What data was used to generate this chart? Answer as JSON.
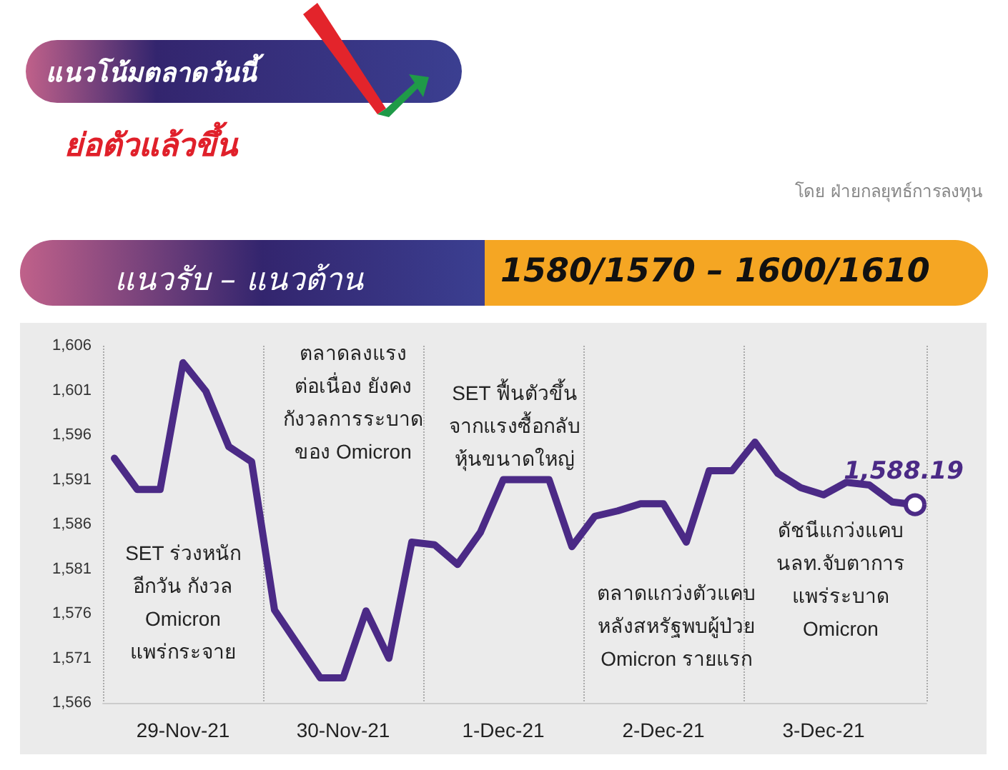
{
  "chart_data": {
    "type": "line",
    "title": "แนวโน้มตลาดวันนี้",
    "subtitle": "ย่อตัวแล้วขึ้น",
    "annotations": [
      "โดย ฝ่ายกลยุทธ์การลงทุน",
      "แนวรับ – แนวต้าน",
      "1580/1570 – 1600/1610",
      "SET ร่วงหนัก\nอีกวัน กังวล\nOmicron\nแพร่กระจาย",
      "ตลาดลงแรง\nต่อเนื่อง ยังคง\nกังวลการระบาด\nของ Omicron",
      "SET ฟื้นตัวขึ้น\nจากแรงซื้อกลับ\nหุ้นขนาดใหญ่",
      "ตลาดแกว่งตัวแคบ\nหลังสหรัฐพบผู้ป่วย\nOmicron รายแรก",
      "ดัชนีแกว่งแคบ\nนลท.จับตาการ\nแพร่ระบาด\nOmicron",
      {
        "text": "1,588.19",
        "y": 1588.19
      }
    ],
    "categories": [
      null,
      null,
      null,
      "29-Nov-21",
      null,
      null,
      null,
      null,
      null,
      null,
      "30-Nov-21",
      null,
      null,
      null,
      null,
      null,
      null,
      "1-Dec-21",
      null,
      null,
      null,
      null,
      null,
      null,
      "2-Dec-21",
      null,
      null,
      null,
      null,
      null,
      null,
      "3-Dec-21",
      null,
      null,
      null,
      null
    ],
    "ylim": [
      1566,
      1606
    ],
    "yticks": [
      {
        "value": 1566,
        "label": "1,566"
      },
      {
        "value": 1571,
        "label": "1,571"
      },
      {
        "value": 1576,
        "label": "1,576"
      },
      {
        "value": 1581,
        "label": "1,581"
      },
      {
        "value": 1586,
        "label": "1,586"
      },
      {
        "value": 1591,
        "label": "1,591"
      },
      {
        "value": 1596,
        "label": "1,596"
      },
      {
        "value": 1601,
        "label": "1,601"
      },
      {
        "value": 1606,
        "label": "1,606"
      }
    ],
    "series": [
      {
        "color": "#4b2a86",
        "values": [
          1593.4,
          1589.9,
          1589.9,
          1604.1,
          1600.9,
          1594.7,
          1593.0,
          1576.4,
          1572.6,
          1568.8,
          1568.8,
          1576.3,
          1571.0,
          1584.0,
          1583.7,
          1581.5,
          1585.1,
          1591.0,
          1591.0,
          1591.0,
          1583.5,
          1586.9,
          1587.5,
          1588.3,
          1588.3,
          1584.0,
          1592.0,
          1592.0,
          1595.2,
          1591.7,
          1590.1,
          1589.3,
          1590.7,
          1590.4,
          1588.5,
          1588.19
        ]
      }
    ],
    "marker": "none",
    "line_style": "solid",
    "grid": "x"
  }
}
